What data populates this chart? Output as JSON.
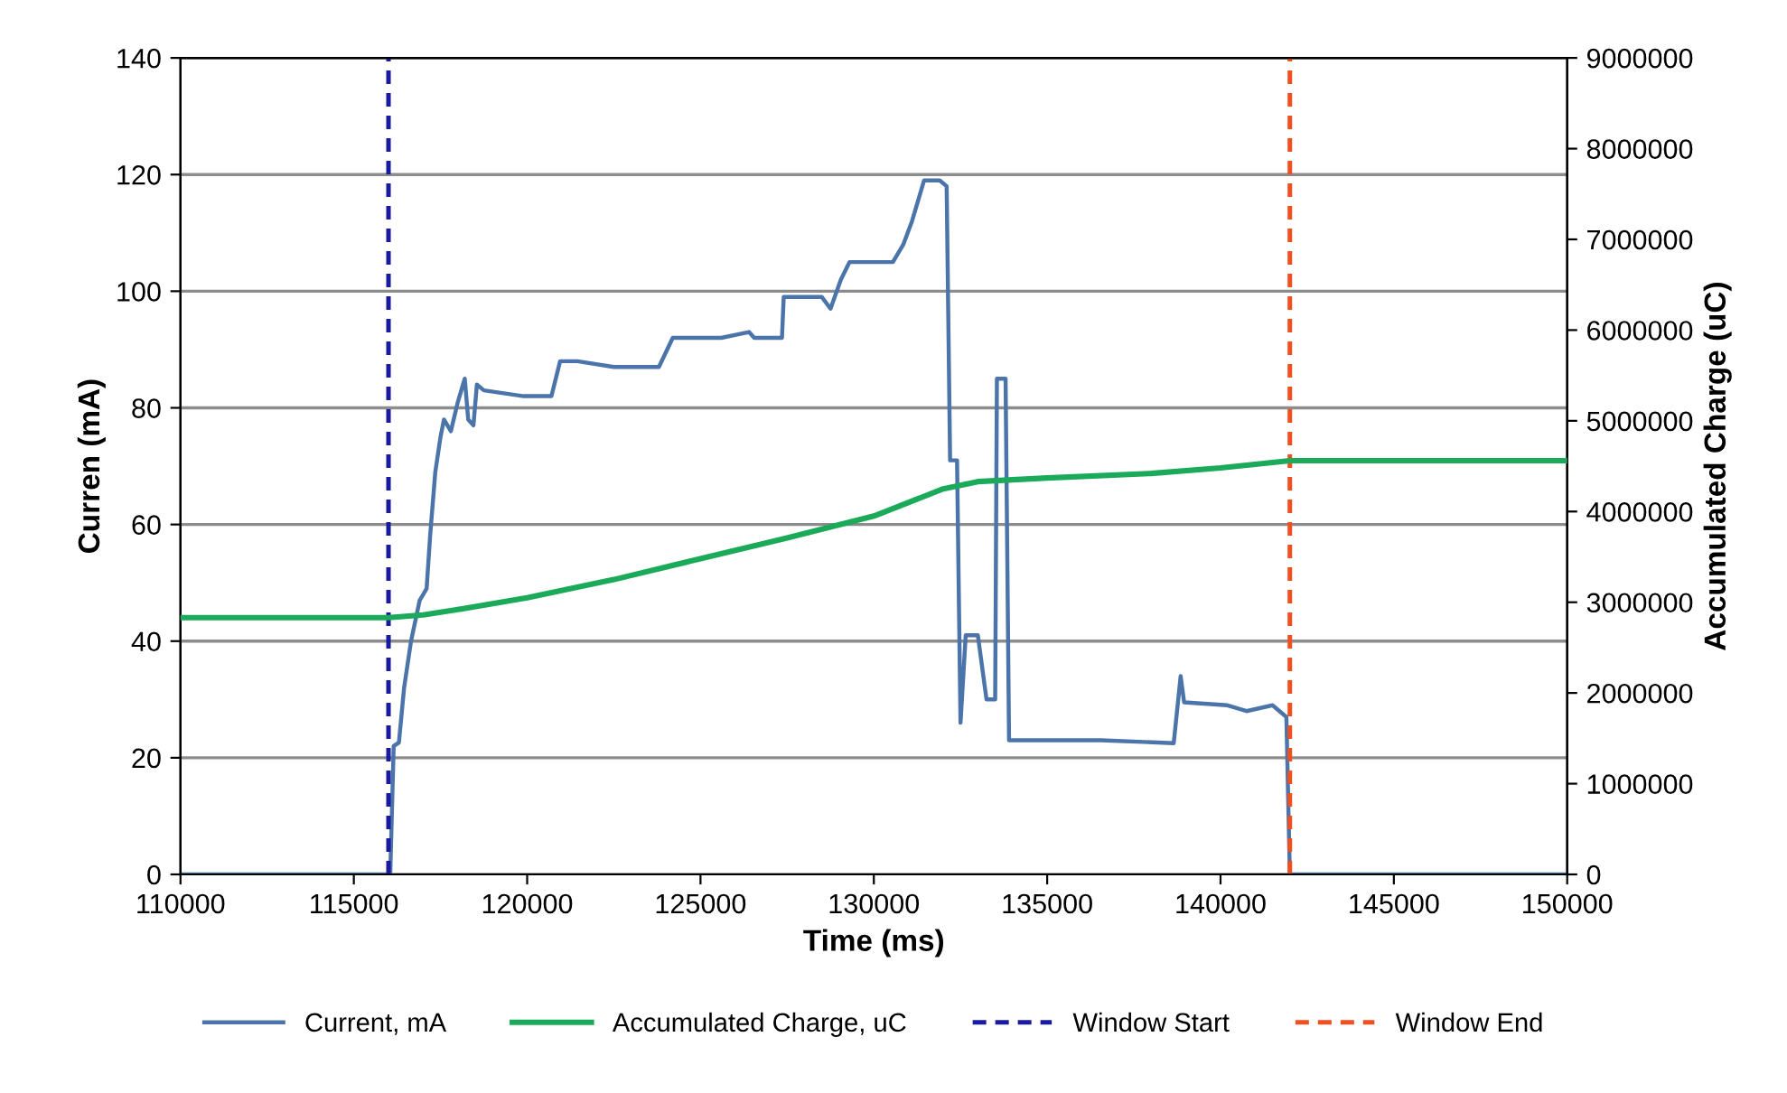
{
  "chart_data": {
    "type": "line",
    "xlabel": "Time (ms)",
    "ylabel": "Curren (mA)",
    "y2label": "Accumulated Charge (uC)",
    "xlim": [
      110000,
      150000
    ],
    "xticks": [
      110000,
      115000,
      120000,
      125000,
      130000,
      135000,
      140000,
      145000,
      150000
    ],
    "ylim": [
      0,
      140
    ],
    "yticks": [
      0,
      20,
      40,
      60,
      80,
      100,
      120,
      140
    ],
    "y2lim": [
      0,
      9000000
    ],
    "y2ticks": [
      0,
      1000000,
      2000000,
      3000000,
      4000000,
      5000000,
      6000000,
      7000000,
      8000000,
      9000000
    ],
    "grid": "y",
    "legend": "bottom",
    "marker": "none",
    "line_style": "solid",
    "series": [
      {
        "name": "Current, mA",
        "color": "#4a74aa",
        "x": [
          110000,
          116000,
          116050,
          116150,
          116300,
          116450,
          116650,
          116900,
          117100,
          117200,
          117350,
          117500,
          117600,
          117800,
          118000,
          118200,
          118300,
          118450,
          118550,
          118750,
          119900,
          120700,
          120950,
          121450,
          122500,
          123800,
          124200,
          125600,
          126400,
          126550,
          127350,
          127400,
          128500,
          128750,
          129050,
          129300,
          130550,
          130850,
          131100,
          131450,
          131900,
          132100,
          132200,
          132400,
          132500,
          132650,
          133000,
          133250,
          133500,
          133550,
          133800,
          133900,
          134100,
          135000,
          136550,
          138650,
          138850,
          138950,
          140200,
          140750,
          141500,
          141900,
          142000,
          150000
        ],
        "values": [
          0,
          0,
          0,
          22,
          22.6,
          32,
          40,
          47,
          49,
          58,
          69,
          75,
          78,
          76,
          81,
          85,
          78,
          77,
          84,
          83,
          82,
          82,
          88,
          88,
          87,
          87,
          92,
          92,
          93,
          92,
          92,
          99,
          99,
          97,
          102,
          105,
          105,
          108,
          112,
          119,
          119,
          118,
          71,
          71,
          26,
          41,
          41,
          30,
          30,
          85,
          85,
          23,
          23,
          23,
          23,
          22.5,
          34,
          29.5,
          29,
          28,
          29,
          27,
          0,
          0
        ]
      },
      {
        "name": "Accumulated Charge, uC",
        "color": "#1aaa5a",
        "axis": "y2",
        "x": [
          110000,
          116000,
          117000,
          118000,
          120000,
          122500,
          125000,
          127500,
          130000,
          132000,
          133000,
          135000,
          138000,
          140000,
          142000,
          150000
        ],
        "values": [
          2830000,
          2830000,
          2860000,
          2920000,
          3050000,
          3250000,
          3480000,
          3710000,
          3950000,
          4250000,
          4330000,
          4370000,
          4420000,
          4480000,
          4560000,
          4560000
        ]
      }
    ],
    "ref_lines": [
      {
        "axis": "x",
        "value": 116000,
        "label": "Window Start",
        "color": "#1a1aa0",
        "line_style": "dashed"
      },
      {
        "axis": "x",
        "value": 142000,
        "label": "Window End",
        "color": "#f05020",
        "line_style": "dashed"
      }
    ]
  }
}
